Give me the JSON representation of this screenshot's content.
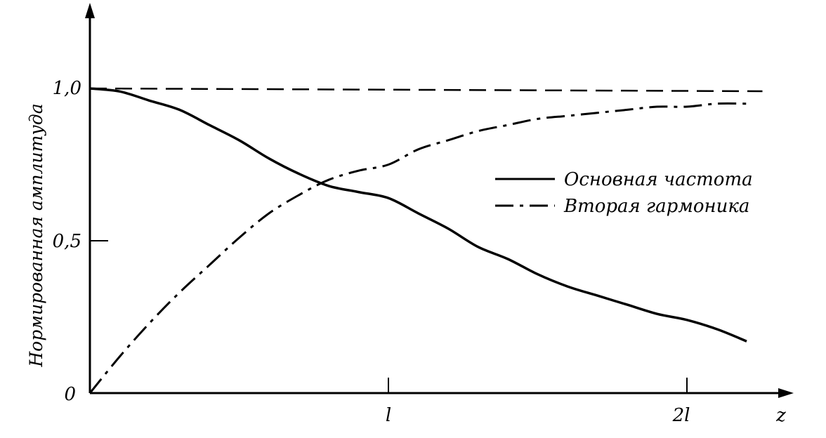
{
  "chart_data": {
    "type": "line",
    "ylabel": "Нормированная амплитуда",
    "xlabel": "z",
    "xlim": [
      0,
      2.3
    ],
    "ylim": [
      0,
      1.25
    ],
    "grid": false,
    "legend_position": "right-middle",
    "y_ticks": [
      {
        "value": 0,
        "label": "0"
      },
      {
        "value": 0.5,
        "label": "0,5"
      },
      {
        "value": 1.0,
        "label": "1,0"
      }
    ],
    "x_ticks": [
      {
        "value": 1,
        "label": "l"
      },
      {
        "value": 2,
        "label": "2l"
      }
    ],
    "reference_line": {
      "y": 1.0,
      "style": "dashed"
    },
    "series": [
      {
        "name": "Основная частота",
        "style": "solid",
        "x": [
          0,
          0.1,
          0.2,
          0.3,
          0.4,
          0.5,
          0.6,
          0.7,
          0.8,
          0.9,
          1.0,
          1.1,
          1.2,
          1.3,
          1.4,
          1.5,
          1.6,
          1.7,
          1.8,
          1.9,
          2.0,
          2.1,
          2.2
        ],
        "values": [
          1.0,
          0.99,
          0.96,
          0.93,
          0.88,
          0.83,
          0.77,
          0.72,
          0.68,
          0.66,
          0.64,
          0.59,
          0.54,
          0.48,
          0.44,
          0.39,
          0.35,
          0.32,
          0.29,
          0.26,
          0.24,
          0.21,
          0.17
        ]
      },
      {
        "name": "Вторая гармоника",
        "style": "dash-dot",
        "x": [
          0,
          0.1,
          0.2,
          0.3,
          0.4,
          0.5,
          0.6,
          0.7,
          0.8,
          0.9,
          1.0,
          1.1,
          1.2,
          1.3,
          1.4,
          1.5,
          1.6,
          1.7,
          1.8,
          1.9,
          2.0,
          2.1,
          2.2
        ],
        "values": [
          0.0,
          0.12,
          0.23,
          0.33,
          0.42,
          0.51,
          0.59,
          0.65,
          0.7,
          0.73,
          0.75,
          0.8,
          0.83,
          0.86,
          0.88,
          0.9,
          0.91,
          0.92,
          0.93,
          0.94,
          0.94,
          0.95,
          0.95
        ]
      }
    ]
  }
}
